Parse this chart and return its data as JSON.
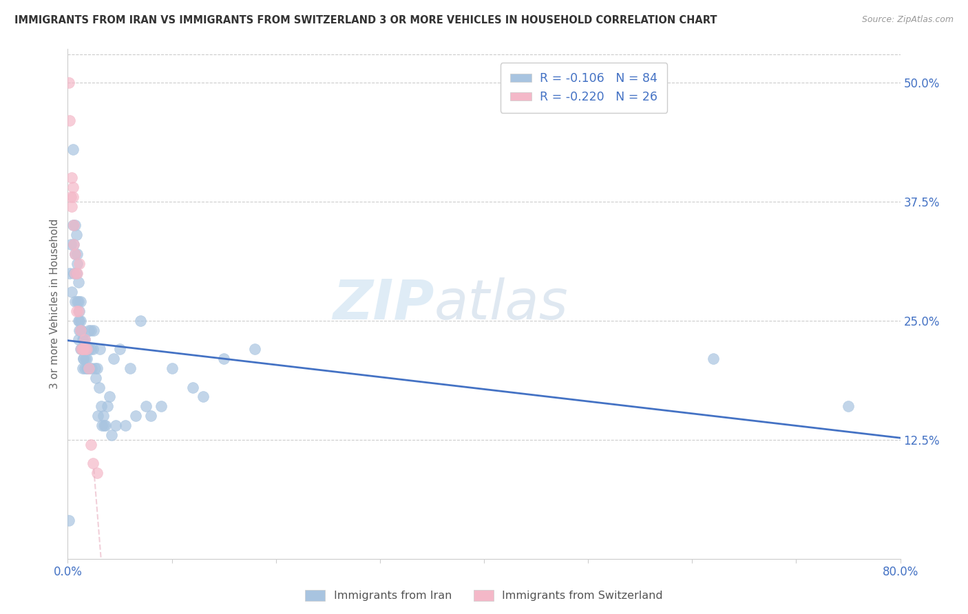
{
  "title": "IMMIGRANTS FROM IRAN VS IMMIGRANTS FROM SWITZERLAND 3 OR MORE VEHICLES IN HOUSEHOLD CORRELATION CHART",
  "source": "Source: ZipAtlas.com",
  "ylabel": "3 or more Vehicles in Household",
  "watermark_zip": "ZIP",
  "watermark_atlas": "atlas",
  "color_iran": "#a8c4e0",
  "color_swiss": "#f4b8c8",
  "trendline_iran_color": "#4472c4",
  "trendline_swiss_color": "#e05070",
  "trendline_swiss_dashed_color": "#e8b0c0",
  "R_iran": -0.106,
  "N_iran": 84,
  "R_swiss": -0.22,
  "N_swiss": 26,
  "xlim": [
    0.0,
    0.8
  ],
  "ylim": [
    0.0,
    0.535
  ],
  "iran_x": [
    0.001,
    0.002,
    0.003,
    0.004,
    0.005,
    0.005,
    0.006,
    0.006,
    0.007,
    0.007,
    0.007,
    0.008,
    0.008,
    0.009,
    0.009,
    0.009,
    0.01,
    0.01,
    0.01,
    0.01,
    0.011,
    0.011,
    0.011,
    0.012,
    0.012,
    0.012,
    0.012,
    0.013,
    0.013,
    0.013,
    0.014,
    0.014,
    0.014,
    0.015,
    0.015,
    0.015,
    0.016,
    0.016,
    0.016,
    0.017,
    0.017,
    0.018,
    0.018,
    0.019,
    0.019,
    0.02,
    0.02,
    0.021,
    0.022,
    0.022,
    0.023,
    0.024,
    0.025,
    0.026,
    0.027,
    0.028,
    0.029,
    0.03,
    0.031,
    0.032,
    0.033,
    0.034,
    0.035,
    0.036,
    0.038,
    0.04,
    0.042,
    0.044,
    0.046,
    0.05,
    0.055,
    0.06,
    0.065,
    0.07,
    0.075,
    0.08,
    0.09,
    0.1,
    0.12,
    0.13,
    0.15,
    0.18,
    0.62,
    0.75
  ],
  "iran_y": [
    0.04,
    0.3,
    0.33,
    0.28,
    0.43,
    0.35,
    0.33,
    0.3,
    0.27,
    0.35,
    0.32,
    0.34,
    0.3,
    0.32,
    0.31,
    0.27,
    0.27,
    0.25,
    0.29,
    0.23,
    0.26,
    0.25,
    0.24,
    0.27,
    0.24,
    0.25,
    0.22,
    0.24,
    0.22,
    0.24,
    0.23,
    0.22,
    0.2,
    0.23,
    0.21,
    0.21,
    0.22,
    0.2,
    0.23,
    0.21,
    0.22,
    0.2,
    0.21,
    0.22,
    0.2,
    0.22,
    0.24,
    0.2,
    0.24,
    0.22,
    0.2,
    0.22,
    0.24,
    0.2,
    0.19,
    0.2,
    0.15,
    0.18,
    0.22,
    0.16,
    0.14,
    0.15,
    0.14,
    0.14,
    0.16,
    0.17,
    0.13,
    0.21,
    0.14,
    0.22,
    0.14,
    0.2,
    0.15,
    0.25,
    0.16,
    0.15,
    0.16,
    0.2,
    0.18,
    0.17,
    0.21,
    0.22,
    0.21,
    0.16
  ],
  "swiss_x": [
    0.001,
    0.002,
    0.003,
    0.004,
    0.004,
    0.005,
    0.005,
    0.006,
    0.006,
    0.007,
    0.007,
    0.008,
    0.009,
    0.01,
    0.011,
    0.012,
    0.013,
    0.014,
    0.015,
    0.016,
    0.017,
    0.018,
    0.02,
    0.022,
    0.024,
    0.028
  ],
  "swiss_y": [
    0.5,
    0.46,
    0.38,
    0.37,
    0.4,
    0.39,
    0.38,
    0.33,
    0.35,
    0.3,
    0.32,
    0.26,
    0.3,
    0.26,
    0.31,
    0.24,
    0.22,
    0.22,
    0.22,
    0.23,
    0.22,
    0.22,
    0.2,
    0.12,
    0.1,
    0.09
  ]
}
